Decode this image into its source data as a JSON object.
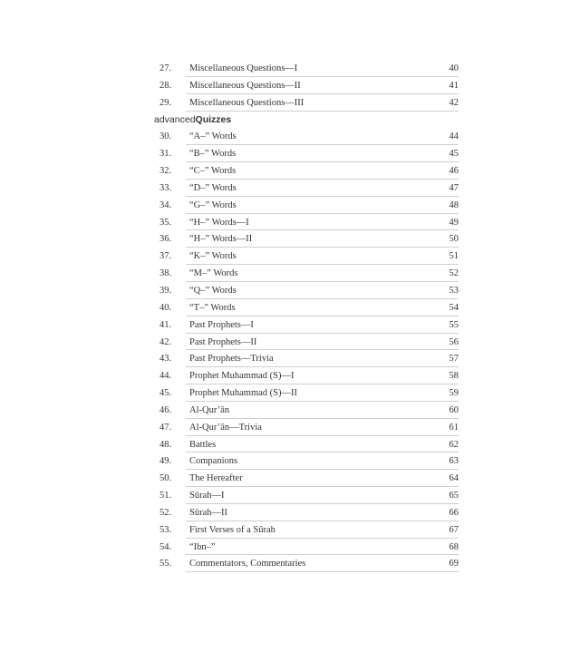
{
  "section_before": [
    {
      "num": "27.",
      "title": "Miscellaneous Questions—I",
      "page": "40"
    },
    {
      "num": "28.",
      "title": "Miscellaneous Questions—II",
      "page": "41"
    },
    {
      "num": "29.",
      "title": "Miscellaneous Questions—III",
      "page": "42"
    }
  ],
  "heading": {
    "prefix": "advanced",
    "bold": "Quizzes"
  },
  "entries": [
    {
      "num": "30.",
      "title": "“A–” Words",
      "page": "44"
    },
    {
      "num": "31.",
      "title": "“B–” Words",
      "page": "45"
    },
    {
      "num": "32.",
      "title": "“C–” Words",
      "page": "46"
    },
    {
      "num": "33.",
      "title": "“D–” Words",
      "page": "47"
    },
    {
      "num": "34.",
      "title": "“G–” Words",
      "page": "48"
    },
    {
      "num": "35.",
      "title": "“H–” Words—I",
      "page": "49"
    },
    {
      "num": "36.",
      "title": "“H–” Words—II",
      "page": "50"
    },
    {
      "num": "37.",
      "title": "“K–” Words",
      "page": "51"
    },
    {
      "num": "38.",
      "title": "“M–” Words",
      "page": "52"
    },
    {
      "num": "39.",
      "title": "“Q–” Words",
      "page": "53"
    },
    {
      "num": "40.",
      "title": "“T–” Words",
      "page": "54"
    },
    {
      "num": "41.",
      "title": "Past Prophets—I",
      "page": "55"
    },
    {
      "num": "42.",
      "title": "Past Prophets—II",
      "page": "56"
    },
    {
      "num": "43.",
      "title": "Past Prophets—Trivia",
      "page": "57"
    },
    {
      "num": "44.",
      "title": "Prophet Muhammad (S)—I",
      "page": "58"
    },
    {
      "num": "45.",
      "title": "Prophet Muhammad (S)—II",
      "page": "59"
    },
    {
      "num": "46.",
      "title": "Al-Qur’ān",
      "page": "60"
    },
    {
      "num": "47.",
      "title": "Al-Qur’ān—Trivia",
      "page": "61"
    },
    {
      "num": "48.",
      "title": "Battles",
      "page": "62"
    },
    {
      "num": "49.",
      "title": "Companions",
      "page": "63"
    },
    {
      "num": "50.",
      "title": "The Hereafter",
      "page": "64"
    },
    {
      "num": "51.",
      "title": "Sūrah—I",
      "page": "65"
    },
    {
      "num": "52.",
      "title": "Sūrah—II",
      "page": "66"
    },
    {
      "num": "53.",
      "title": "First Verses of a Sūrah",
      "page": "67"
    },
    {
      "num": "54.",
      "title": "“Ibn–”",
      "page": "68"
    },
    {
      "num": "55.",
      "title": "Commentators, Commentaries",
      "page": "69"
    }
  ]
}
